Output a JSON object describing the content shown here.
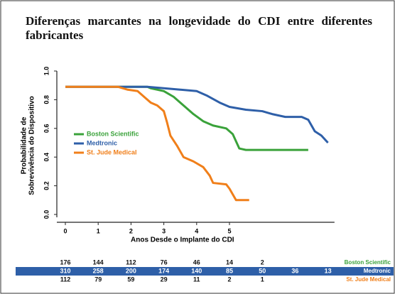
{
  "chart_data": {
    "type": "line",
    "title": "Diferenças marcantes na longevidade do CDI entre diferentes fabricantes",
    "y_label": [
      "Probabilidade de",
      "Sobrevivência do Dispositivo"
    ],
    "x_label": "Anos Desde o Implante do CDI",
    "xlim": [
      0,
      8.2
    ],
    "xticks": [
      0,
      1,
      2,
      3,
      4,
      5
    ],
    "ylim": [
      0,
      1
    ],
    "yticks": [
      {
        "value": 0,
        "label": "0.0"
      },
      0.2,
      0.4,
      0.6,
      0.8,
      {
        "value": 1,
        "label": "1.0"
      }
    ],
    "series": [
      {
        "name": "Boston Scientific",
        "color": "#3aa23a",
        "x": [
          0,
          2.5,
          2.6,
          3.0,
          3.3,
          3.6,
          3.9,
          4.2,
          4.5,
          4.9,
          5.1,
          5.3,
          5.5,
          7.4
        ],
        "values": [
          0.89,
          0.89,
          0.88,
          0.86,
          0.82,
          0.76,
          0.7,
          0.65,
          0.62,
          0.6,
          0.56,
          0.46,
          0.45,
          0.45
        ]
      },
      {
        "name": "Medtronic",
        "color": "#2e5fa8",
        "x": [
          0,
          2.5,
          3.0,
          3.5,
          4.0,
          4.3,
          4.7,
          5.0,
          5.5,
          6.0,
          6.3,
          6.7,
          7.2,
          7.4,
          7.6,
          7.8,
          8.0
        ],
        "values": [
          0.89,
          0.89,
          0.88,
          0.87,
          0.86,
          0.83,
          0.78,
          0.75,
          0.73,
          0.72,
          0.7,
          0.68,
          0.68,
          0.66,
          0.58,
          0.55,
          0.5
        ]
      },
      {
        "name": "St. Jude Medical",
        "color": "#f07f1a",
        "x": [
          0,
          1.6,
          1.9,
          2.2,
          2.4,
          2.6,
          2.8,
          3.0,
          3.1,
          3.2,
          3.4,
          3.6,
          3.9,
          4.2,
          4.4,
          4.5,
          4.9,
          5.0,
          5.2,
          5.6
        ],
        "values": [
          0.89,
          0.89,
          0.87,
          0.86,
          0.82,
          0.78,
          0.76,
          0.72,
          0.64,
          0.55,
          0.48,
          0.4,
          0.37,
          0.33,
          0.27,
          0.22,
          0.21,
          0.18,
          0.1,
          0.1
        ]
      }
    ],
    "risk_table": [
      [
        176,
        144,
        112,
        76,
        46,
        14,
        2
      ],
      [
        310,
        258,
        200,
        174,
        140,
        85,
        50,
        36,
        13
      ],
      [
        112,
        79,
        59,
        29,
        11,
        2,
        1
      ]
    ]
  }
}
